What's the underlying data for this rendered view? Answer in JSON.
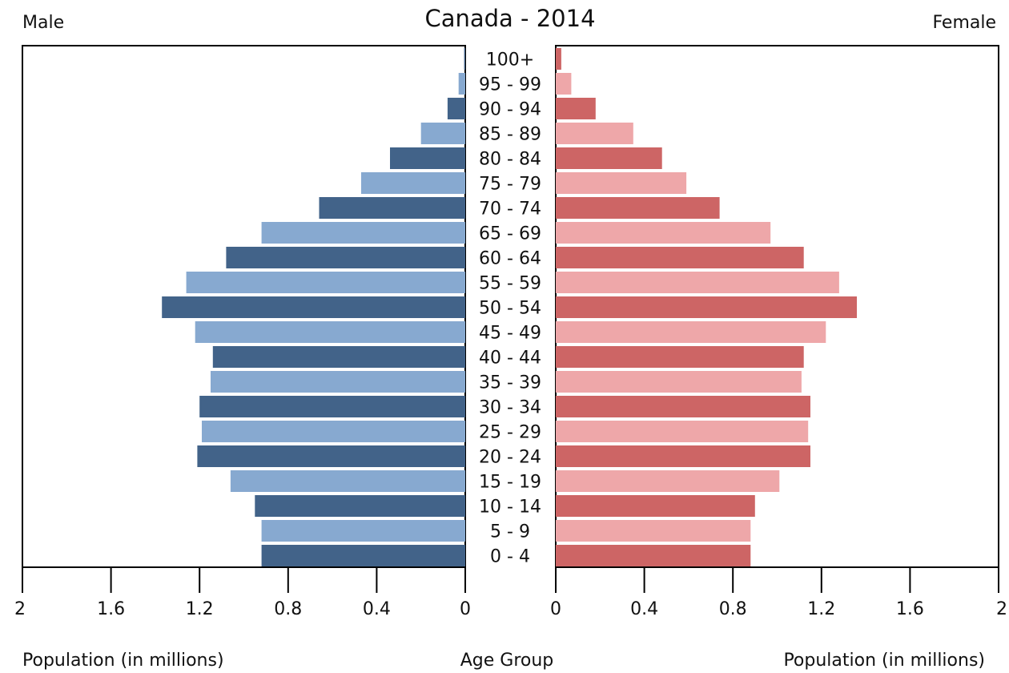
{
  "chart_data": {
    "type": "bar",
    "title": "Canada - 2014",
    "left_label": "Male",
    "right_label": "Female",
    "xlabel_left": "Population (in millions)",
    "xlabel_center": "Age Group",
    "xlabel_right": "Population (in millions)",
    "xlim": [
      0,
      2
    ],
    "x_ticks": [
      "2",
      "1.6",
      "1.2",
      "0.8",
      "0.4",
      "0",
      "0",
      "0.4",
      "0.8",
      "1.2",
      "1.6",
      "2"
    ],
    "categories": [
      "100+",
      "95 - 99",
      "90 - 94",
      "85 - 89",
      "80 - 84",
      "75 - 79",
      "70 - 74",
      "65 - 69",
      "60 - 64",
      "55 - 59",
      "50 - 54",
      "45 - 49",
      "40 - 44",
      "35 - 39",
      "30 - 34",
      "25 - 29",
      "20 - 24",
      "15 - 19",
      "10 - 14",
      "5 - 9",
      "0 - 4"
    ],
    "series": [
      {
        "name": "Male",
        "values": [
          0.005,
          0.03,
          0.08,
          0.2,
          0.34,
          0.47,
          0.66,
          0.92,
          1.08,
          1.26,
          1.37,
          1.22,
          1.14,
          1.15,
          1.2,
          1.19,
          1.21,
          1.06,
          0.95,
          0.92,
          0.92
        ],
        "colors": [
          "#426389",
          "#87a9d0"
        ]
      },
      {
        "name": "Female",
        "values": [
          0.025,
          0.07,
          0.18,
          0.35,
          0.48,
          0.59,
          0.74,
          0.97,
          1.12,
          1.28,
          1.36,
          1.22,
          1.12,
          1.11,
          1.15,
          1.14,
          1.15,
          1.01,
          0.9,
          0.88,
          0.88
        ],
        "colors": [
          "#cd6565",
          "#eea7a9"
        ]
      }
    ],
    "grid": false
  }
}
